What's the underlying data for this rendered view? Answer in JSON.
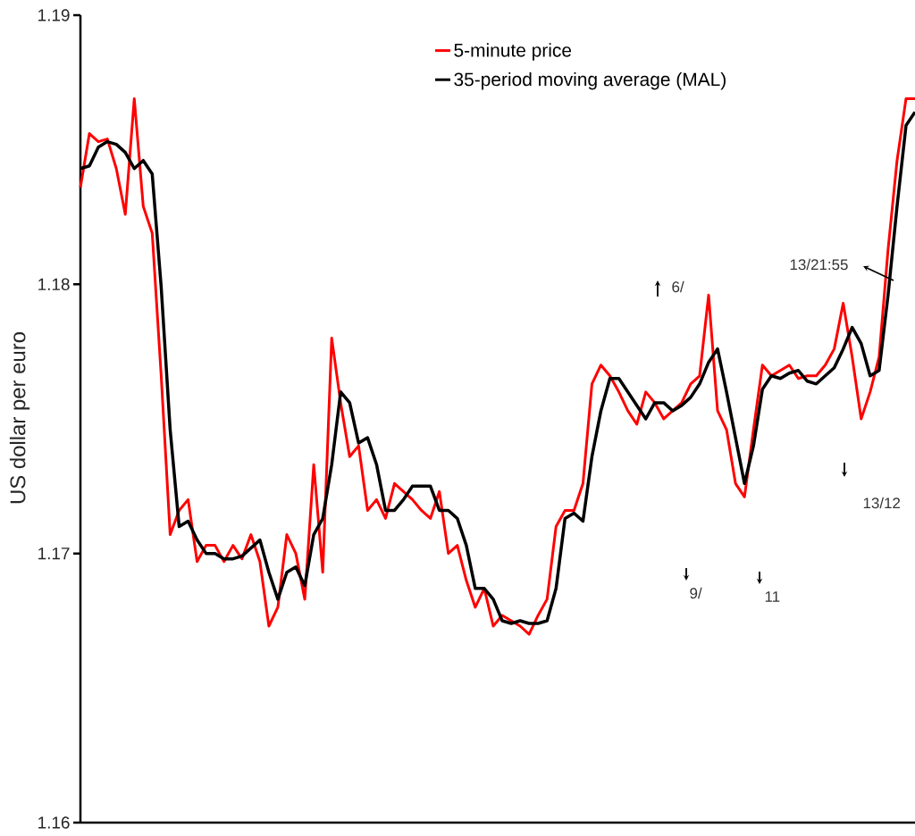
{
  "chart_data": {
    "type": "line",
    "ylabel": "US dollar per euro",
    "categories": [
      null,
      null,
      null,
      null,
      null,
      null,
      null,
      null,
      null,
      null,
      null,
      null,
      null,
      null,
      null,
      null,
      null,
      null,
      null,
      null,
      null,
      null,
      null,
      null,
      null,
      null,
      null,
      null,
      null,
      null,
      null,
      null,
      null,
      null,
      null,
      null,
      null,
      null,
      null,
      null,
      null,
      null,
      null,
      null,
      null,
      null,
      null,
      null,
      null,
      null,
      null,
      null,
      null,
      null,
      null,
      null,
      null,
      null,
      null,
      null,
      null,
      null,
      null,
      null,
      null,
      null,
      null,
      null,
      null,
      null,
      null,
      null,
      null,
      null,
      null,
      null,
      null,
      null,
      null,
      null,
      null,
      null,
      null,
      null,
      null,
      null,
      null,
      null,
      null,
      null,
      null,
      null,
      null,
      null
    ],
    "series": [
      {
        "name": "5-minute price",
        "color": "#ff0000",
        "values": [
          1.1836,
          1.1856,
          1.1853,
          1.1854,
          1.1843,
          1.1826,
          1.1869,
          1.1829,
          1.1819,
          1.1766,
          1.1707,
          1.1716,
          1.172,
          1.1697,
          1.1703,
          1.1703,
          1.1697,
          1.1703,
          1.1698,
          1.1707,
          1.1697,
          1.1673,
          1.168,
          1.1707,
          1.17,
          1.1683,
          1.1733,
          1.1693,
          1.178,
          1.1756,
          1.1736,
          1.174,
          1.1716,
          1.172,
          1.1713,
          1.1726,
          1.1723,
          1.172,
          1.1716,
          1.1713,
          1.1723,
          1.17,
          1.1703,
          1.169,
          1.168,
          1.1687,
          1.1673,
          1.1677,
          1.1675,
          1.1673,
          1.167,
          1.1677,
          1.1683,
          1.171,
          1.1716,
          1.1716,
          1.1726,
          1.1763,
          1.177,
          1.1766,
          1.176,
          1.1753,
          1.1748,
          1.176,
          1.1756,
          1.175,
          1.1753,
          1.1756,
          1.1763,
          1.1766,
          1.1796,
          1.1753,
          1.1746,
          1.1726,
          1.1721,
          1.1746,
          1.177,
          1.1766,
          1.1768,
          1.177,
          1.1765,
          1.1766,
          1.1766,
          1.177,
          1.1776,
          1.1793,
          1.1773,
          1.175,
          1.176,
          1.1773,
          1.1813,
          1.1846,
          1.1869,
          1.1869
        ]
      },
      {
        "name": "35-period moving average (MAL)",
        "color": "#000000",
        "values": [
          1.1843,
          1.1844,
          1.1851,
          1.1853,
          1.1852,
          1.1849,
          1.1843,
          1.1846,
          1.1841,
          1.1799,
          1.1746,
          1.171,
          1.1712,
          1.1705,
          1.17,
          1.17,
          1.1698,
          1.1698,
          1.1699,
          1.1702,
          1.1705,
          1.1693,
          1.1683,
          1.1693,
          1.1695,
          1.1688,
          1.1707,
          1.1713,
          1.1733,
          1.176,
          1.1756,
          1.1741,
          1.1743,
          1.1733,
          1.1716,
          1.1716,
          1.172,
          1.1725,
          1.1725,
          1.1725,
          1.1716,
          1.1716,
          1.1713,
          1.1703,
          1.1687,
          1.1687,
          1.1683,
          1.1675,
          1.1674,
          1.1675,
          1.1674,
          1.1674,
          1.1675,
          1.1687,
          1.1713,
          1.1715,
          1.1712,
          1.1736,
          1.1753,
          1.1765,
          1.1765,
          1.176,
          1.1755,
          1.175,
          1.1756,
          1.1756,
          1.1753,
          1.1755,
          1.1758,
          1.1763,
          1.1771,
          1.1776,
          1.176,
          1.1743,
          1.1726,
          1.174,
          1.1761,
          1.1766,
          1.1765,
          1.1767,
          1.1768,
          1.1764,
          1.1763,
          1.1766,
          1.1769,
          1.1776,
          1.1784,
          1.1778,
          1.1766,
          1.1768,
          1.1796,
          1.1829,
          1.1859,
          1.1864
        ]
      }
    ],
    "ylim": [
      1.16,
      1.19
    ],
    "yticks": [
      1.16,
      1.17,
      1.18,
      1.19
    ],
    "tick_labels": "y",
    "legend": "top",
    "line_style": "solid",
    "marker": "none",
    "grid": false,
    "annotations": [
      "6/",
      "9/",
      "11",
      "13/12",
      "13/21:55"
    ]
  }
}
